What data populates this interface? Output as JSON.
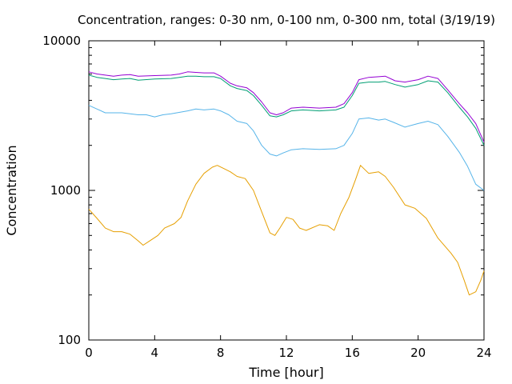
{
  "chart_data": {
    "type": "line",
    "title": "Concentration, ranges: 0-30 nm, 0-100 nm, 0-300 nm, total (3/19/19)",
    "xlabel": "Time [hour]",
    "ylabel": "Concentration",
    "xlim": [
      0,
      24
    ],
    "ylim": [
      100,
      10000
    ],
    "yscale": "log",
    "grid": false,
    "x_ticks": [
      "0",
      "4",
      "8",
      "12",
      "16",
      "20",
      "24"
    ],
    "y_ticks": [
      "100",
      "1000",
      "10000"
    ],
    "series": [
      {
        "color": "#e69f00",
        "points": [
          [
            0,
            750
          ],
          [
            0.5,
            650
          ],
          [
            1,
            560
          ],
          [
            1.5,
            530
          ],
          [
            2,
            530
          ],
          [
            2.5,
            510
          ],
          [
            3,
            460
          ],
          [
            3.3,
            430
          ],
          [
            3.7,
            460
          ],
          [
            4.2,
            500
          ],
          [
            4.6,
            560
          ],
          [
            5.2,
            600
          ],
          [
            5.6,
            660
          ],
          [
            6,
            850
          ],
          [
            6.5,
            1100
          ],
          [
            7,
            1300
          ],
          [
            7.5,
            1430
          ],
          [
            7.8,
            1470
          ],
          [
            8.2,
            1400
          ],
          [
            8.6,
            1330
          ],
          [
            9,
            1240
          ],
          [
            9.5,
            1200
          ],
          [
            10,
            1000
          ],
          [
            10.5,
            720
          ],
          [
            11,
            520
          ],
          [
            11.3,
            500
          ],
          [
            11.6,
            560
          ],
          [
            12,
            660
          ],
          [
            12.4,
            640
          ],
          [
            12.8,
            560
          ],
          [
            13.2,
            540
          ],
          [
            14,
            590
          ],
          [
            14.5,
            580
          ],
          [
            14.9,
            540
          ],
          [
            15.3,
            700
          ],
          [
            15.8,
            900
          ],
          [
            16.2,
            1180
          ],
          [
            16.5,
            1470
          ],
          [
            17,
            1300
          ],
          [
            17.6,
            1330
          ],
          [
            18,
            1240
          ],
          [
            18.5,
            1050
          ],
          [
            19.2,
            800
          ],
          [
            19.8,
            760
          ],
          [
            20.5,
            650
          ],
          [
            21.2,
            480
          ],
          [
            22,
            380
          ],
          [
            22.4,
            330
          ],
          [
            22.8,
            250
          ],
          [
            23.1,
            200
          ],
          [
            23.5,
            210
          ],
          [
            23.8,
            250
          ],
          [
            24,
            290
          ]
        ]
      },
      {
        "color": "#56b4e9",
        "points": [
          [
            0,
            3700
          ],
          [
            0.5,
            3500
          ],
          [
            1,
            3300
          ],
          [
            2,
            3300
          ],
          [
            3,
            3200
          ],
          [
            3.5,
            3200
          ],
          [
            4,
            3100
          ],
          [
            4.5,
            3200
          ],
          [
            5,
            3250
          ],
          [
            6,
            3400
          ],
          [
            6.5,
            3500
          ],
          [
            7,
            3450
          ],
          [
            7.6,
            3500
          ],
          [
            8,
            3400
          ],
          [
            8.5,
            3200
          ],
          [
            9,
            2900
          ],
          [
            9.6,
            2800
          ],
          [
            10,
            2500
          ],
          [
            10.5,
            2000
          ],
          [
            11,
            1750
          ],
          [
            11.4,
            1700
          ],
          [
            11.8,
            1780
          ],
          [
            12.3,
            1870
          ],
          [
            13,
            1900
          ],
          [
            14,
            1880
          ],
          [
            15,
            1900
          ],
          [
            15.5,
            2000
          ],
          [
            16,
            2400
          ],
          [
            16.4,
            3000
          ],
          [
            17,
            3050
          ],
          [
            17.6,
            2950
          ],
          [
            18,
            3000
          ],
          [
            18.5,
            2850
          ],
          [
            19.2,
            2650
          ],
          [
            20,
            2800
          ],
          [
            20.6,
            2900
          ],
          [
            21.2,
            2750
          ],
          [
            21.8,
            2300
          ],
          [
            22.5,
            1800
          ],
          [
            23,
            1450
          ],
          [
            23.5,
            1100
          ],
          [
            24,
            1000
          ]
        ]
      },
      {
        "color": "#009e73",
        "points": [
          [
            0,
            5900
          ],
          [
            0.5,
            5700
          ],
          [
            1,
            5600
          ],
          [
            1.5,
            5500
          ],
          [
            2,
            5550
          ],
          [
            2.5,
            5600
          ],
          [
            3,
            5450
          ],
          [
            4,
            5550
          ],
          [
            5,
            5600
          ],
          [
            5.5,
            5700
          ],
          [
            6,
            5800
          ],
          [
            6.5,
            5800
          ],
          [
            7,
            5750
          ],
          [
            7.6,
            5750
          ],
          [
            8,
            5600
          ],
          [
            8.6,
            5000
          ],
          [
            9,
            4800
          ],
          [
            9.6,
            4650
          ],
          [
            10,
            4300
          ],
          [
            10.5,
            3700
          ],
          [
            11,
            3150
          ],
          [
            11.4,
            3100
          ],
          [
            11.8,
            3200
          ],
          [
            12.3,
            3400
          ],
          [
            13,
            3450
          ],
          [
            14,
            3400
          ],
          [
            15,
            3450
          ],
          [
            15.5,
            3600
          ],
          [
            16,
            4300
          ],
          [
            16.4,
            5200
          ],
          [
            17,
            5300
          ],
          [
            17.6,
            5300
          ],
          [
            18,
            5350
          ],
          [
            18.6,
            5100
          ],
          [
            19.2,
            4900
          ],
          [
            20,
            5100
          ],
          [
            20.6,
            5400
          ],
          [
            21.2,
            5300
          ],
          [
            21.8,
            4500
          ],
          [
            22.5,
            3600
          ],
          [
            23,
            3100
          ],
          [
            23.5,
            2600
          ],
          [
            24,
            2000
          ]
        ]
      },
      {
        "color": "#9400d3",
        "points": [
          [
            0,
            6200
          ],
          [
            0.5,
            6000
          ],
          [
            1,
            5900
          ],
          [
            1.5,
            5800
          ],
          [
            2,
            5900
          ],
          [
            2.5,
            5950
          ],
          [
            3,
            5800
          ],
          [
            4,
            5850
          ],
          [
            5,
            5900
          ],
          [
            5.5,
            6000
          ],
          [
            6,
            6200
          ],
          [
            6.5,
            6150
          ],
          [
            7,
            6100
          ],
          [
            7.6,
            6100
          ],
          [
            8,
            5800
          ],
          [
            8.6,
            5200
          ],
          [
            9,
            5000
          ],
          [
            9.6,
            4850
          ],
          [
            10,
            4500
          ],
          [
            10.5,
            3900
          ],
          [
            11,
            3300
          ],
          [
            11.4,
            3200
          ],
          [
            11.8,
            3300
          ],
          [
            12.3,
            3550
          ],
          [
            13,
            3600
          ],
          [
            14,
            3550
          ],
          [
            15,
            3600
          ],
          [
            15.5,
            3800
          ],
          [
            16,
            4500
          ],
          [
            16.4,
            5500
          ],
          [
            17,
            5700
          ],
          [
            17.6,
            5750
          ],
          [
            18,
            5800
          ],
          [
            18.6,
            5400
          ],
          [
            19.2,
            5300
          ],
          [
            20,
            5500
          ],
          [
            20.6,
            5800
          ],
          [
            21.2,
            5600
          ],
          [
            21.8,
            4700
          ],
          [
            22.5,
            3800
          ],
          [
            23,
            3300
          ],
          [
            23.5,
            2800
          ],
          [
            24,
            2100
          ]
        ]
      }
    ]
  }
}
